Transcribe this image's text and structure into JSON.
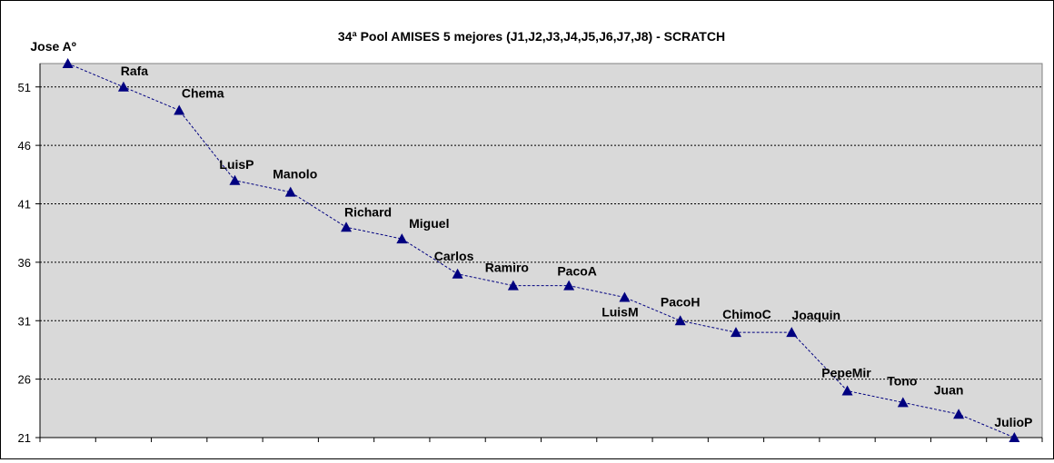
{
  "chart_data": {
    "type": "line",
    "title": "34ª Pool AMISES 5 mejores (J1,J2,J3,J4,J5,J6,J7,J8)  - SCRATCH",
    "xlabel": "",
    "ylabel": "",
    "ylim": [
      21,
      53
    ],
    "yticks": [
      21,
      26,
      31,
      36,
      41,
      46,
      51
    ],
    "grid": true,
    "legend": "none",
    "colors": {
      "plot_background": "#d9d9d9",
      "line": "#000080",
      "marker": "#000080",
      "gridline": "#000000"
    },
    "points": [
      {
        "label": "Jose Aº",
        "value": 53
      },
      {
        "label": "Rafa",
        "value": 51
      },
      {
        "label": "Chema",
        "value": 49
      },
      {
        "label": "LuisP",
        "value": 43
      },
      {
        "label": "Manolo",
        "value": 42
      },
      {
        "label": "Richard",
        "value": 39
      },
      {
        "label": "Miguel",
        "value": 38
      },
      {
        "label": "Carlos",
        "value": 35
      },
      {
        "label": "Ramiro",
        "value": 34
      },
      {
        "label": "PacoA",
        "value": 34
      },
      {
        "label": "LuisM",
        "value": 33
      },
      {
        "label": "PacoH",
        "value": 31
      },
      {
        "label": "ChimoC",
        "value": 30
      },
      {
        "label": "Joaquin",
        "value": 30
      },
      {
        "label": "PepeMir",
        "value": 25
      },
      {
        "label": "Tono",
        "value": 24
      },
      {
        "label": "Juan",
        "value": 23
      },
      {
        "label": "JulioP",
        "value": 21
      }
    ]
  }
}
